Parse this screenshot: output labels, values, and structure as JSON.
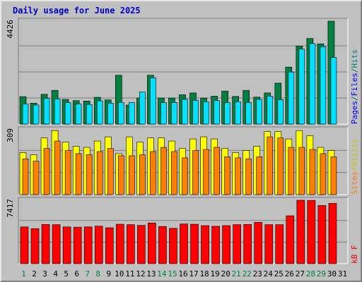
{
  "title": "Daily usage for June 2025",
  "colors": {
    "hits": "#008040",
    "files": "#00e0ff",
    "sites": "#ff8000",
    "visits": "#ffff00",
    "kbytes": "#ff0000",
    "label_hits": "#008080",
    "label_files": "#0000ff",
    "label_sites": "#ff8000",
    "label_visits": "#c8c800",
    "label_kbytes": "#ff0000",
    "day_weekday": "#000000",
    "day_weekend": "#008040"
  },
  "chart_data": [
    {
      "type": "bar",
      "name": "hits-files",
      "categories": [
        "1",
        "2",
        "3",
        "4",
        "5",
        "6",
        "7",
        "8",
        "9",
        "10",
        "11",
        "12",
        "13",
        "14",
        "15",
        "16",
        "17",
        "18",
        "19",
        "20",
        "21",
        "22",
        "23",
        "24",
        "25",
        "26",
        "27",
        "28",
        "29",
        "30",
        "31"
      ],
      "ymax_label": "4426",
      "ylim": [
        0,
        4426
      ],
      "series": [
        {
          "name": "Hits",
          "values": [
            1180,
            900,
            1280,
            1450,
            1060,
            1010,
            990,
            1150,
            1040,
            2100,
            820,
            1120,
            2100,
            1120,
            1120,
            1260,
            1340,
            1120,
            1200,
            1420,
            1190,
            1450,
            1160,
            1340,
            1760,
            2450,
            3350,
            3680,
            3450,
            4426,
            0
          ]
        },
        {
          "name": "Files",
          "values": [
            860,
            820,
            1100,
            1080,
            920,
            860,
            840,
            1000,
            900,
            930,
            930,
            1380,
            1990,
            920,
            930,
            1060,
            1020,
            960,
            1010,
            920,
            960,
            930,
            1060,
            1200,
            1050,
            2240,
            3220,
            3460,
            3330,
            2860,
            0
          ]
        }
      ],
      "legend": [
        "Pages",
        "/",
        "Files",
        "/",
        "Hits"
      ]
    },
    {
      "type": "bar",
      "name": "sites-visits",
      "categories": [
        "1",
        "2",
        "3",
        "4",
        "5",
        "6",
        "7",
        "8",
        "9",
        "10",
        "11",
        "12",
        "13",
        "14",
        "15",
        "16",
        "17",
        "18",
        "19",
        "20",
        "21",
        "22",
        "23",
        "24",
        "25",
        "26",
        "27",
        "28",
        "29",
        "30",
        "31"
      ],
      "ymax_label": "309",
      "ylim": [
        0,
        309
      ],
      "series": [
        {
          "name": "Visits",
          "values": [
            200,
            190,
            270,
            305,
            250,
            230,
            225,
            255,
            275,
            195,
            275,
            250,
            270,
            270,
            255,
            220,
            265,
            275,
            265,
            220,
            200,
            210,
            230,
            300,
            300,
            265,
            305,
            280,
            225,
            210,
            0
          ]
        },
        {
          "name": "Sites",
          "values": [
            170,
            160,
            220,
            255,
            210,
            195,
            190,
            205,
            220,
            185,
            185,
            190,
            205,
            225,
            205,
            175,
            210,
            215,
            225,
            180,
            175,
            170,
            180,
            275,
            270,
            225,
            225,
            215,
            195,
            180,
            0
          ]
        }
      ],
      "legend": [
        "Sites",
        "/",
        "Visits"
      ]
    },
    {
      "type": "bar",
      "name": "kbytes",
      "categories": [
        "1",
        "2",
        "3",
        "4",
        "5",
        "6",
        "7",
        "8",
        "9",
        "10",
        "11",
        "12",
        "13",
        "14",
        "15",
        "16",
        "17",
        "18",
        "19",
        "20",
        "21",
        "22",
        "23",
        "24",
        "25",
        "26",
        "27",
        "28",
        "29",
        "30",
        "31"
      ],
      "ymax_label": "7417",
      "ylim": [
        0,
        7417
      ],
      "series": [
        {
          "name": "KBytes",
          "values": [
            4300,
            4100,
            4580,
            4560,
            4300,
            4270,
            4300,
            4390,
            4200,
            4610,
            4560,
            4480,
            4760,
            4350,
            4130,
            4640,
            4610,
            4450,
            4370,
            4450,
            4560,
            4590,
            4830,
            4560,
            4560,
            5600,
            7417,
            7400,
            6800,
            7050,
            0
          ]
        }
      ],
      "legend": [
        "kB",
        "F"
      ]
    }
  ],
  "days": [
    "1",
    "2",
    "3",
    "4",
    "5",
    "6",
    "7",
    "8",
    "9",
    "10",
    "11",
    "12",
    "13",
    "14",
    "15",
    "16",
    "17",
    "18",
    "19",
    "20",
    "21",
    "22",
    "23",
    "24",
    "25",
    "26",
    "27",
    "28",
    "29",
    "30",
    "31"
  ],
  "weekend_days": [
    1,
    7,
    8,
    14,
    15,
    21,
    22,
    28,
    29
  ]
}
